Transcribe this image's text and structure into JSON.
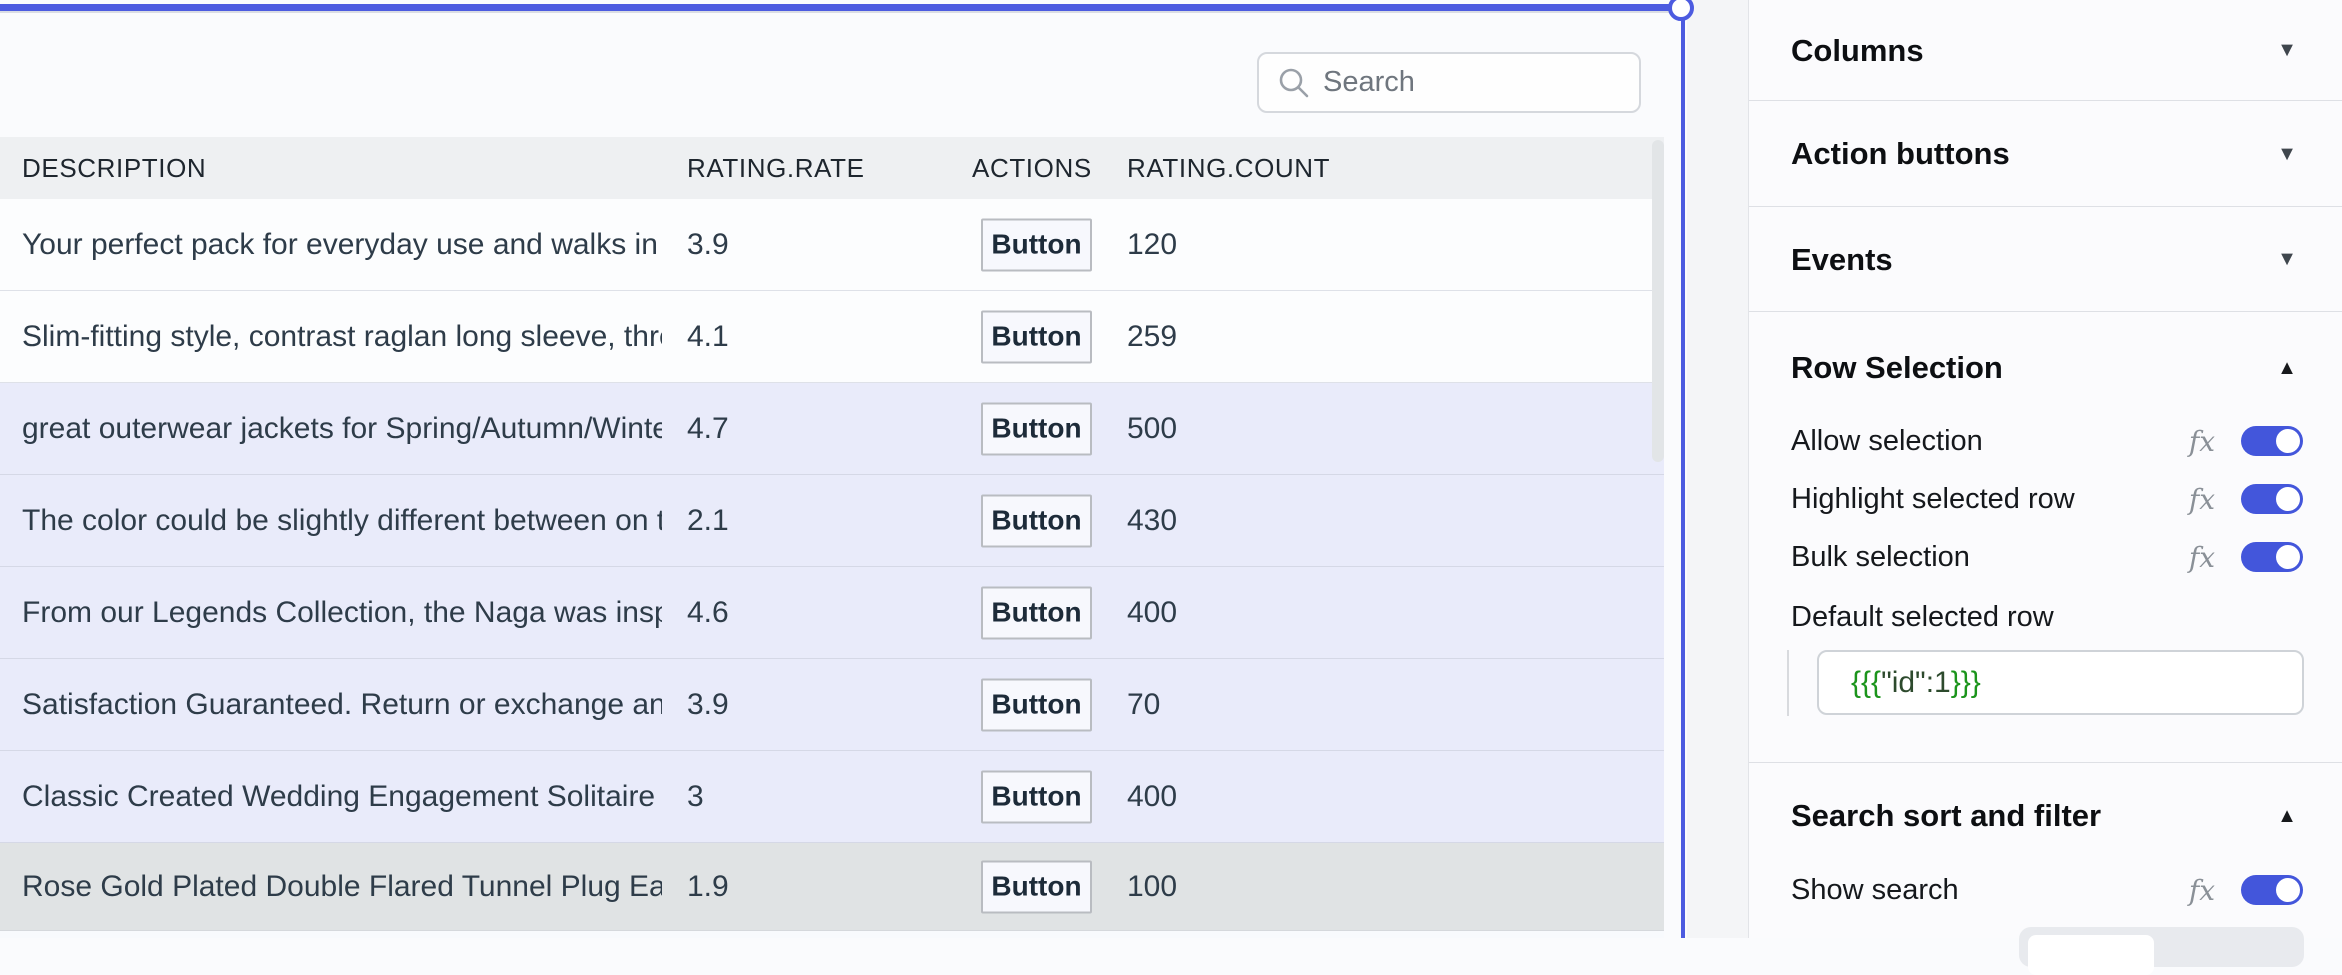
{
  "colors": {
    "selection_border": "#4C5BE0",
    "toggle_on": "#4356DB",
    "selected_row_bg": "#E9EBFA",
    "highlight_row_bg": "#E0E3E4",
    "header_bg": "#EEF0F2",
    "binding_green": "#1C941C"
  },
  "canvas": {
    "search_placeholder": "Search",
    "table": {
      "columns": [
        "DESCRIPTION",
        "RATING.RATE",
        "ACTIONS",
        "RATING.COUNT"
      ],
      "rows": [
        {
          "description": "Your perfect pack for everyday use and walks in the forest. Stash your laptop (up to 15 inches) in the padded sleeve, your everyday",
          "rate": "3.9",
          "button": "Button",
          "count": "120",
          "highlight": "none"
        },
        {
          "description": "Slim-fitting style, contrast raglan long sleeve, three-button henley placket, light weight & soft fabric for breathable and comfortable wearing.",
          "rate": "4.1",
          "button": "Button",
          "count": "259",
          "highlight": "none"
        },
        {
          "description": "great outerwear jackets for Spring/Autumn/Winter, suitable for many occasions, such as working, hiking, camping, mountain/rock climbing",
          "rate": "4.7",
          "button": "Button",
          "count": "500",
          "highlight": "selected"
        },
        {
          "description": "The color could be slightly different between on the screen and in practice. / Please note that body builds vary by person",
          "rate": "2.1",
          "button": "Button",
          "count": "430",
          "highlight": "selected"
        },
        {
          "description": "From our Legends Collection, the Naga was inspired by the mythical water dragon that protects the ocean's pearl.",
          "rate": "4.6",
          "button": "Button",
          "count": "400",
          "highlight": "selected"
        },
        {
          "description": "Satisfaction Guaranteed. Return or exchange any order within 30 days. Designed and sold by Hafeez Center in the United States.",
          "rate": "3.9",
          "button": "Button",
          "count": "70",
          "highlight": "selected"
        },
        {
          "description": "Classic Created Wedding Engagement Solitaire Diamond Promise Ring for Her. Gifts to spoil your love more for Engagement",
          "rate": "3",
          "button": "Button",
          "count": "400",
          "highlight": "selected"
        },
        {
          "description": "Rose Gold Plated Double Flared Tunnel Plug Earrings. Made of 316L Stainless Steel",
          "rate": "1.9",
          "button": "Button",
          "count": "100",
          "highlight": "hover"
        }
      ]
    }
  },
  "panel": {
    "collapsed_sections": [
      {
        "label": "Columns"
      },
      {
        "label": "Action buttons"
      },
      {
        "label": "Events"
      }
    ],
    "row_selection": {
      "title": "Row Selection",
      "toggles": [
        {
          "label": "Allow selection",
          "fx": "fx",
          "on": true
        },
        {
          "label": "Highlight selected row",
          "fx": "fx",
          "on": true
        },
        {
          "label": "Bulk selection",
          "fx": "fx",
          "on": true
        }
      ],
      "default_selected_row_label": "Default selected row",
      "default_selected_row_value": {
        "open": "{{{",
        "inner": "\"id\":1",
        "close": "}}}"
      }
    },
    "search_sort_filter": {
      "title": "Search sort and filter",
      "toggles": [
        {
          "label": "Show search",
          "fx": "fx",
          "on": true
        }
      ]
    }
  }
}
